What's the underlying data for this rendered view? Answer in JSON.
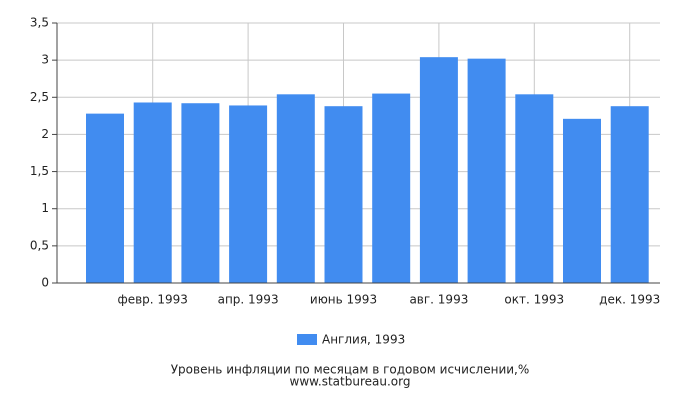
{
  "chart_data": {
    "type": "bar",
    "categories": [
      null,
      "февр. 1993",
      null,
      "апр. 1993",
      null,
      "июнь 1993",
      null,
      "авг. 1993",
      null,
      "окт. 1993",
      null,
      "дек. 1993"
    ],
    "series": [
      {
        "name": "Англия, 1993",
        "color": "#418cf0",
        "values": [
          2.28,
          2.43,
          2.42,
          2.39,
          2.54,
          2.38,
          2.55,
          3.04,
          3.02,
          2.54,
          2.21,
          2.38
        ]
      }
    ],
    "ylim": [
      0,
      3.5
    ],
    "yticks": [
      0,
      {
        "value": 0.5,
        "label": "0,5"
      },
      1,
      {
        "value": 1.5,
        "label": "1,5"
      },
      2,
      {
        "value": 2.5,
        "label": "2,5"
      },
      3,
      {
        "value": 3.5,
        "label": "3,5"
      }
    ],
    "grid": true,
    "caption": "Уровень инфляции по месяцам в годовом исчислении,%",
    "source": "www.statbureau.org"
  }
}
